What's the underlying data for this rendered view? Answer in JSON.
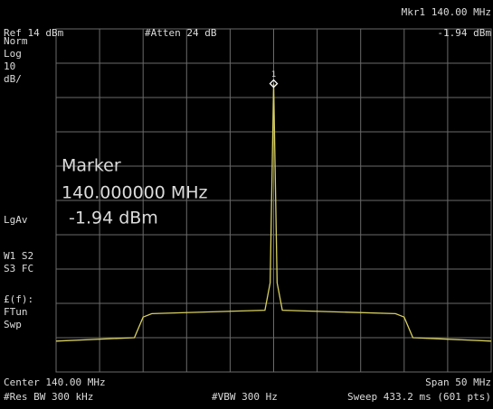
{
  "header": {
    "ref": "Ref 14 dBm",
    "atten": "#Atten 24 dB",
    "marker_freq": "Mkr1  140.00 MHz",
    "marker_amp": "-1.94 dBm"
  },
  "side_labels": [
    "Norm",
    "Log",
    "10",
    "dB/",
    "LgAv",
    "W1  S2",
    "S3  FC",
    "£(f):",
    "FTun",
    "Swp"
  ],
  "marker_box": {
    "title": "Marker",
    "freq": "140.000000 MHz",
    "amp": "-1.94 dBm"
  },
  "footer": {
    "center": "Center 140.00 MHz",
    "span": "Span 50 MHz",
    "rbw": "#Res BW 300 kHz",
    "vbw": "#VBW 300 Hz",
    "sweep": "Sweep 433.2 ms (601 pts)"
  },
  "trace": {
    "type": "line",
    "color": "#d8d060",
    "xlim": [
      115,
      165
    ],
    "ylim": [
      -86,
      14
    ],
    "x": [
      115,
      124,
      125,
      126,
      139,
      139.6,
      140,
      140.4,
      141,
      154,
      155,
      156,
      165
    ],
    "values": [
      -77,
      -76,
      -70,
      -69,
      -68,
      -60,
      -1.94,
      -60,
      -68,
      -69,
      -70,
      -76,
      -77
    ],
    "marker": {
      "label": "1",
      "x": 140,
      "value": -1.94
    }
  }
}
